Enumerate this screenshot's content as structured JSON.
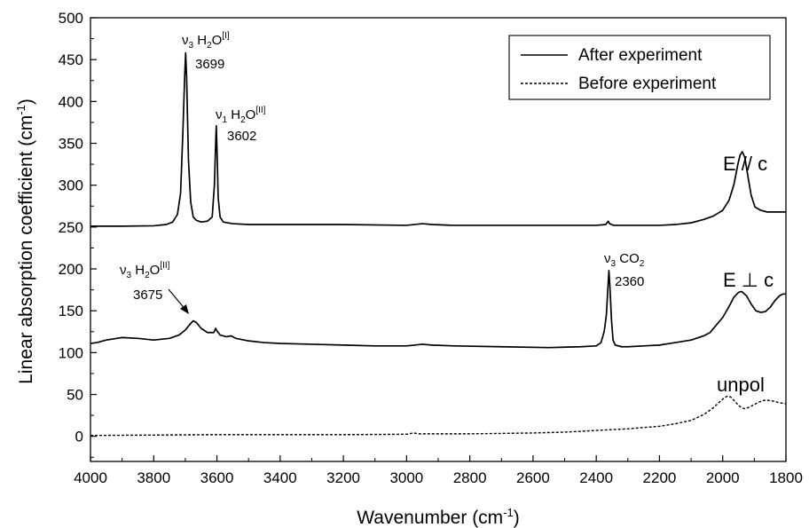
{
  "chart_data": {
    "type": "line",
    "xlabel": "Wavenumber (cm-1)",
    "ylabel": "Linear absorption coefficient (cm-1)",
    "xlim": [
      4000,
      1800
    ],
    "ylim": [
      -30,
      500
    ],
    "x_ticks": [
      4000,
      3800,
      3600,
      3400,
      3200,
      3000,
      2800,
      2600,
      2400,
      2200,
      2000,
      1800
    ],
    "y_ticks": [
      0,
      50,
      100,
      150,
      200,
      250,
      300,
      350,
      400,
      450,
      500
    ],
    "grid": false,
    "legend_position": "top-right",
    "legend": [
      {
        "label": "After experiment",
        "style": "solid"
      },
      {
        "label": "Before experiment",
        "style": "dashed"
      }
    ],
    "series": [
      {
        "name": "E // c",
        "style": "solid",
        "points": [
          [
            4000,
            251
          ],
          [
            3900,
            251
          ],
          [
            3800,
            251.5
          ],
          [
            3760,
            253
          ],
          [
            3740,
            256
          ],
          [
            3725,
            265
          ],
          [
            3715,
            290
          ],
          [
            3708,
            360
          ],
          [
            3702,
            430
          ],
          [
            3699,
            458
          ],
          [
            3696,
            430
          ],
          [
            3690,
            330
          ],
          [
            3683,
            280
          ],
          [
            3675,
            262
          ],
          [
            3665,
            258
          ],
          [
            3650,
            256
          ],
          [
            3630,
            257
          ],
          [
            3615,
            262
          ],
          [
            3608,
            300
          ],
          [
            3604,
            350
          ],
          [
            3602,
            371
          ],
          [
            3600,
            345
          ],
          [
            3596,
            285
          ],
          [
            3590,
            262
          ],
          [
            3580,
            256
          ],
          [
            3550,
            254
          ],
          [
            3500,
            253
          ],
          [
            3400,
            253
          ],
          [
            3200,
            253
          ],
          [
            3000,
            252
          ],
          [
            2950,
            254
          ],
          [
            2920,
            253
          ],
          [
            2850,
            252
          ],
          [
            2700,
            252
          ],
          [
            2500,
            252
          ],
          [
            2400,
            252
          ],
          [
            2370,
            253
          ],
          [
            2362,
            257
          ],
          [
            2358,
            254
          ],
          [
            2345,
            252
          ],
          [
            2300,
            252
          ],
          [
            2200,
            252
          ],
          [
            2150,
            253
          ],
          [
            2100,
            255
          ],
          [
            2060,
            259
          ],
          [
            2030,
            263
          ],
          [
            2000,
            270
          ],
          [
            1980,
            282
          ],
          [
            1965,
            300
          ],
          [
            1952,
            325
          ],
          [
            1945,
            336
          ],
          [
            1938,
            340
          ],
          [
            1930,
            333
          ],
          [
            1920,
            310
          ],
          [
            1910,
            288
          ],
          [
            1898,
            274
          ],
          [
            1880,
            270
          ],
          [
            1860,
            268
          ],
          [
            1830,
            268
          ],
          [
            1800,
            268
          ]
        ]
      },
      {
        "name": "E ⊥ c",
        "style": "solid",
        "points": [
          [
            4000,
            111
          ],
          [
            3980,
            112
          ],
          [
            3950,
            115
          ],
          [
            3900,
            118
          ],
          [
            3850,
            117
          ],
          [
            3800,
            115
          ],
          [
            3750,
            117
          ],
          [
            3720,
            121
          ],
          [
            3700,
            127
          ],
          [
            3685,
            134
          ],
          [
            3675,
            138
          ],
          [
            3665,
            136
          ],
          [
            3650,
            129
          ],
          [
            3630,
            124
          ],
          [
            3610,
            124
          ],
          [
            3604,
            129
          ],
          [
            3600,
            126
          ],
          [
            3590,
            121
          ],
          [
            3570,
            119
          ],
          [
            3555,
            120
          ],
          [
            3540,
            117
          ],
          [
            3500,
            114
          ],
          [
            3450,
            112
          ],
          [
            3400,
            111
          ],
          [
            3300,
            110
          ],
          [
            3200,
            109
          ],
          [
            3100,
            108
          ],
          [
            3000,
            108
          ],
          [
            2950,
            110
          ],
          [
            2920,
            109
          ],
          [
            2850,
            108
          ],
          [
            2700,
            107
          ],
          [
            2550,
            106
          ],
          [
            2450,
            107
          ],
          [
            2400,
            108
          ],
          [
            2385,
            112
          ],
          [
            2375,
            125
          ],
          [
            2368,
            145
          ],
          [
            2362,
            185
          ],
          [
            2360,
            198
          ],
          [
            2357,
            180
          ],
          [
            2352,
            140
          ],
          [
            2347,
            115
          ],
          [
            2340,
            109
          ],
          [
            2320,
            107
          ],
          [
            2300,
            107
          ],
          [
            2250,
            108
          ],
          [
            2200,
            109
          ],
          [
            2150,
            112
          ],
          [
            2100,
            115
          ],
          [
            2060,
            120
          ],
          [
            2040,
            124
          ],
          [
            2020,
            133
          ],
          [
            2000,
            142
          ],
          [
            1980,
            155
          ],
          [
            1965,
            166
          ],
          [
            1950,
            172
          ],
          [
            1940,
            173
          ],
          [
            1925,
            168
          ],
          [
            1910,
            158
          ],
          [
            1895,
            150
          ],
          [
            1880,
            148
          ],
          [
            1865,
            149
          ],
          [
            1850,
            154
          ],
          [
            1835,
            162
          ],
          [
            1820,
            168
          ],
          [
            1810,
            170
          ],
          [
            1800,
            170
          ]
        ]
      },
      {
        "name": "unpol",
        "style": "dashed",
        "points": [
          [
            4000,
            1
          ],
          [
            3800,
            1.5
          ],
          [
            3600,
            2
          ],
          [
            3400,
            2
          ],
          [
            3200,
            2
          ],
          [
            3000,
            2.5
          ],
          [
            2980,
            4
          ],
          [
            2960,
            3
          ],
          [
            2800,
            3
          ],
          [
            2600,
            4
          ],
          [
            2500,
            5
          ],
          [
            2400,
            7
          ],
          [
            2300,
            9
          ],
          [
            2200,
            12
          ],
          [
            2150,
            15
          ],
          [
            2100,
            19
          ],
          [
            2060,
            26
          ],
          [
            2030,
            34
          ],
          [
            2010,
            41
          ],
          [
            1995,
            46
          ],
          [
            1985,
            48
          ],
          [
            1975,
            47
          ],
          [
            1962,
            42
          ],
          [
            1950,
            37
          ],
          [
            1940,
            34
          ],
          [
            1930,
            33
          ],
          [
            1915,
            35
          ],
          [
            1900,
            38
          ],
          [
            1885,
            41
          ],
          [
            1870,
            43
          ],
          [
            1855,
            43
          ],
          [
            1840,
            42
          ],
          [
            1820,
            40
          ],
          [
            1800,
            39
          ]
        ]
      }
    ],
    "annotations": [
      {
        "species": "ν3 H2O[I]",
        "nu": "ν",
        "sub": "3",
        "mol": " H",
        "mol_sub": "2",
        "mol_rest": "O",
        "sup": "[I]",
        "wavenumber": "3699"
      },
      {
        "species": "ν1 H2O[II]",
        "nu": "ν",
        "sub": "1",
        "mol": " H",
        "mol_sub": "2",
        "mol_rest": "O",
        "sup": "[II]",
        "wavenumber": "3602"
      },
      {
        "species": "ν3 H2O[II]",
        "nu": "ν",
        "sub": "3",
        "mol": " H",
        "mol_sub": "2",
        "mol_rest": "O",
        "sup": "[II]",
        "wavenumber": "3675"
      },
      {
        "species": "ν3 CO2",
        "nu": "ν",
        "sub": "3",
        "mol": " CO",
        "mol_sub": "2",
        "mol_rest": "",
        "sup": "",
        "wavenumber": "2360"
      }
    ],
    "side_labels": [
      "E // c",
      "E ⊥ c",
      "unpol"
    ]
  }
}
